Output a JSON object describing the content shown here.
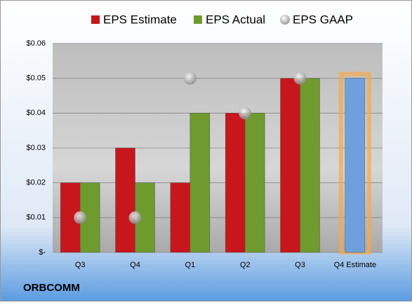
{
  "chart_data": {
    "type": "bar",
    "categories": [
      "Q3",
      "Q4",
      "Q1",
      "Q2",
      "Q3",
      "Q4 Estimate"
    ],
    "series": [
      {
        "name": "EPS Estimate",
        "color": "#c8161d",
        "values": [
          0.02,
          0.03,
          0.02,
          0.04,
          0.05,
          0.05
        ]
      },
      {
        "name": "EPS Actual",
        "color": "#6e9a2e",
        "values": [
          0.02,
          0.02,
          0.04,
          0.04,
          0.05,
          null
        ]
      },
      {
        "name": "EPS GAAP",
        "color": "#a6a6a6",
        "values": [
          0.01,
          0.01,
          0.05,
          0.04,
          0.05,
          null
        ],
        "marker": "circle"
      }
    ],
    "highlight_color": "#6fa0dc",
    "ylim": [
      0,
      0.06
    ],
    "yticks": [
      {
        "value": 0,
        "label": "$-"
      },
      {
        "value": 0.01,
        "label": "$0.01"
      },
      {
        "value": 0.02,
        "label": "$0.02"
      },
      {
        "value": 0.03,
        "label": "$0.03"
      },
      {
        "value": 0.04,
        "label": "$0.04"
      },
      {
        "value": 0.05,
        "label": "$0.05"
      },
      {
        "value": 0.06,
        "label": "$0.06"
      }
    ],
    "grid": true,
    "legend": "top",
    "footer": "ORBCOMM"
  }
}
